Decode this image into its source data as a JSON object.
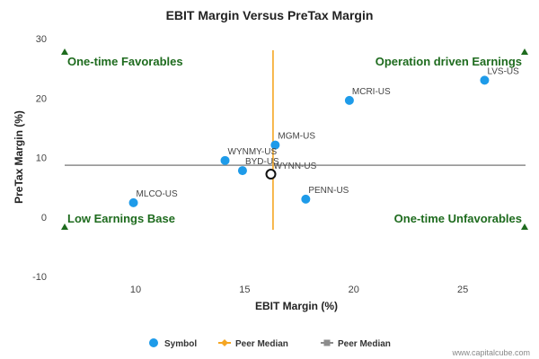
{
  "chart_data": {
    "type": "scatter",
    "title": "EBIT Margin Versus PreTax Margin",
    "xlabel": "EBIT Margin (%)",
    "ylabel": "PreTax Margin (%)",
    "xlim": [
      6.5,
      28
    ],
    "ylim": [
      -10,
      30
    ],
    "xticks": [
      "10",
      "15",
      "20",
      "25"
    ],
    "yticks": [
      "30",
      "20",
      "10",
      "0",
      "-10"
    ],
    "grid": false,
    "points": [
      {
        "label": "LVS-US",
        "x": 26.0,
        "y": 23.0
      },
      {
        "label": "MCRI-US",
        "x": 19.8,
        "y": 19.6
      },
      {
        "label": "MGM-US",
        "x": 16.4,
        "y": 12.1
      },
      {
        "label": "WYNMY-US",
        "x": 14.1,
        "y": 9.5
      },
      {
        "label": "BYD-US",
        "x": 14.9,
        "y": 7.8
      },
      {
        "label": "PENN-US",
        "x": 17.8,
        "y": 3.0
      },
      {
        "label": "MLCO-US",
        "x": 9.9,
        "y": 2.4
      }
    ],
    "highlight": {
      "label": "WYNN-US",
      "x": 16.2,
      "y": 7.2
    },
    "peer_median_x": 16.3,
    "peer_median_y": 8.7,
    "quadrants": {
      "top_left": "One-time Favorables",
      "top_right": "Operation driven Earnings",
      "bottom_left": "Low Earnings Base",
      "bottom_right": "One-time Unfavorables"
    },
    "legend": {
      "placement": "bottom",
      "items": [
        {
          "label": "Symbol",
          "color": "#1e9be9",
          "marker": "circle"
        },
        {
          "label": "Peer Median",
          "color": "#f5a623",
          "marker": "line-diamond"
        },
        {
          "label": "Peer Median",
          "color": "#8c8c8c",
          "marker": "line-square"
        }
      ]
    },
    "colors": {
      "symbol": "#1e9be9",
      "peer_median_vertical": "#f5a623",
      "peer_median_horizontal": "#8c8c8c",
      "quadrant_text": "#1e6b1e",
      "quadrant_marker": "#1e6b1e"
    }
  },
  "footer": {
    "credit": "www.capitalcube.com"
  }
}
